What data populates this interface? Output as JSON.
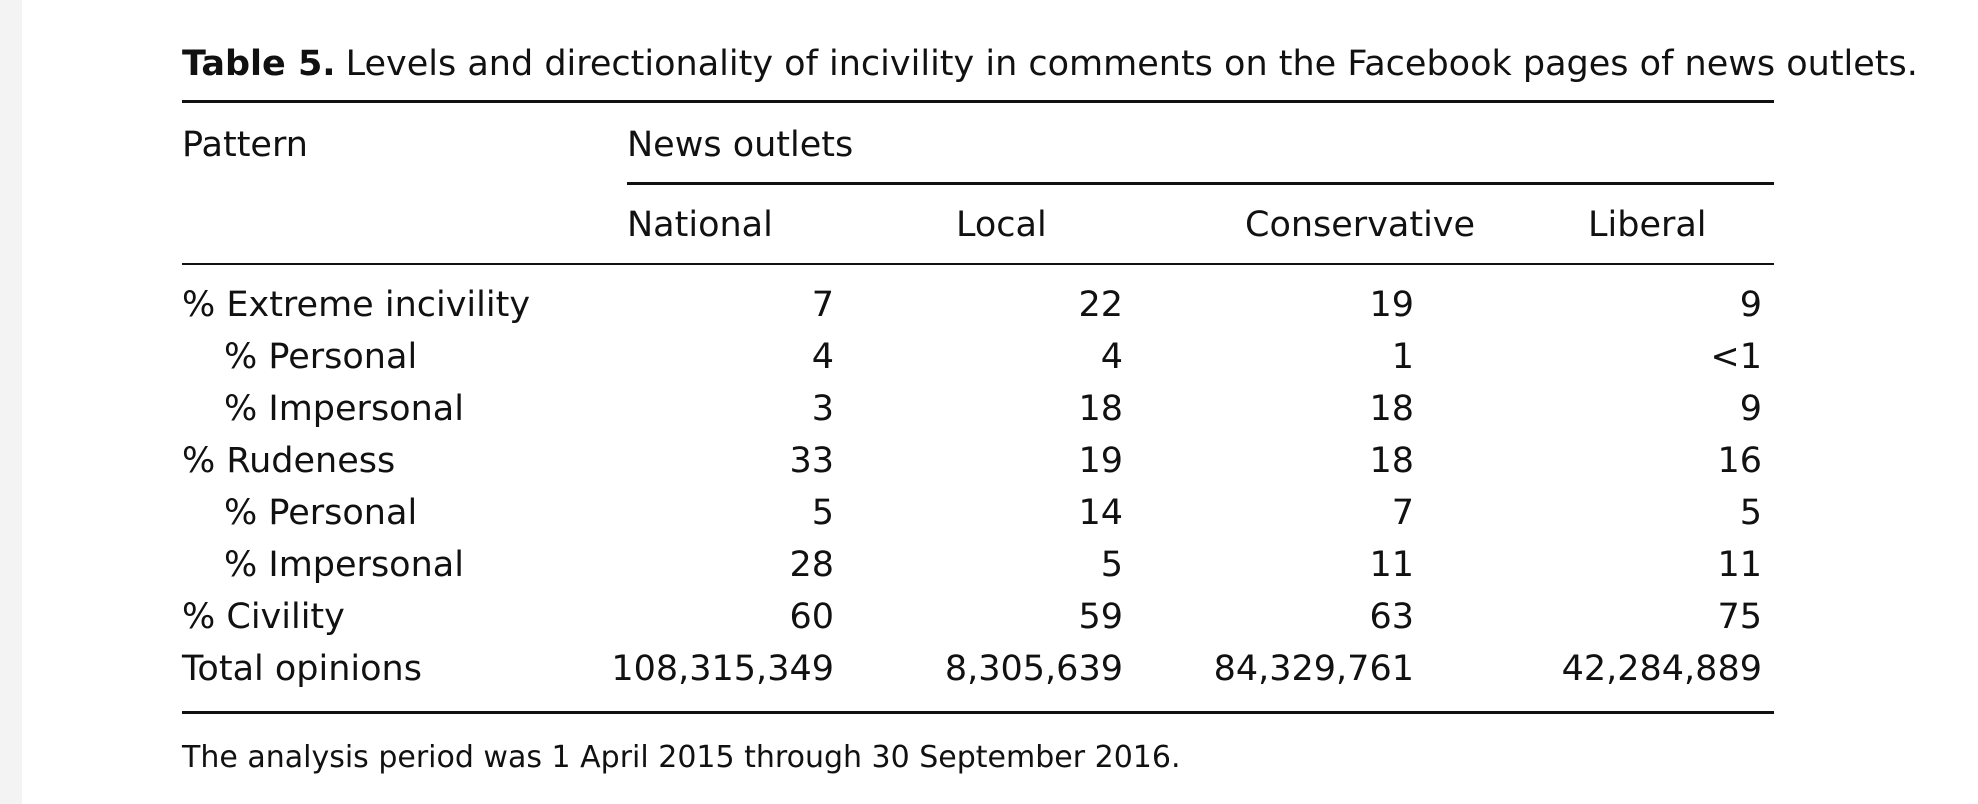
{
  "caption": {
    "label": "Table 5.",
    "text": "Levels and directionality of incivility in comments on the Facebook pages of news outlets."
  },
  "header": {
    "row_label": "Pattern",
    "group_label": "News outlets",
    "columns": [
      "National",
      "Local",
      "Conservative",
      "Liberal"
    ]
  },
  "rows": [
    {
      "label": "% Extreme incivility",
      "indent": false,
      "values": [
        "7",
        "22",
        "19",
        "9"
      ]
    },
    {
      "label": "% Personal",
      "indent": true,
      "values": [
        "4",
        "4",
        "1",
        "<1"
      ]
    },
    {
      "label": "% Impersonal",
      "indent": true,
      "values": [
        "3",
        "18",
        "18",
        "9"
      ]
    },
    {
      "label": "% Rudeness",
      "indent": false,
      "values": [
        "33",
        "19",
        "18",
        "16"
      ]
    },
    {
      "label": "% Personal",
      "indent": true,
      "values": [
        "5",
        "14",
        "7",
        "5"
      ]
    },
    {
      "label": "% Impersonal",
      "indent": true,
      "values": [
        "28",
        "5",
        "11",
        "11"
      ]
    },
    {
      "label": "% Civility",
      "indent": false,
      "values": [
        "60",
        "59",
        "63",
        "75"
      ]
    },
    {
      "label": "Total opinions",
      "indent": false,
      "values": [
        "108,315,349",
        "8,305,639",
        "84,329,761",
        "42,284,889"
      ]
    }
  ],
  "note": "The analysis period was 1 April 2015 through 30 September 2016."
}
